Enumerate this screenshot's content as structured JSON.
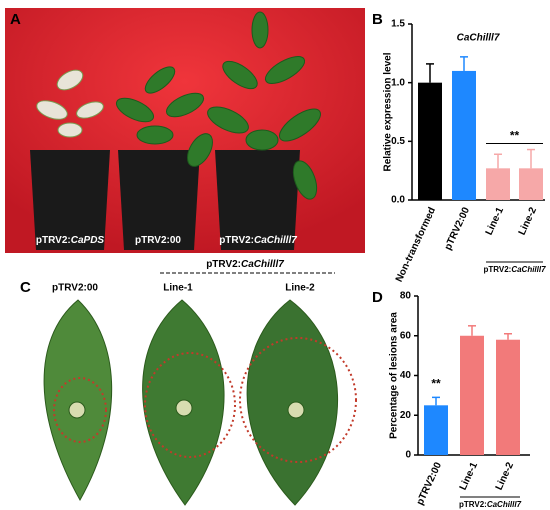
{
  "panels": {
    "A": {
      "label": "A",
      "captions": [
        {
          "prefix": "pTRV2:",
          "gene": "CaPDS"
        },
        {
          "prefix": "pTRV2:00"
        },
        {
          "prefix": "pTRV2:",
          "gene": "CaChilll7"
        }
      ]
    },
    "C": {
      "label": "C",
      "group_label": {
        "prefix": "pTRV2:",
        "gene": "CaChilll7"
      },
      "captions": [
        "pTRV2:00",
        "Line-1",
        "Line-2"
      ]
    }
  },
  "chart_data": [
    {
      "type": "bar",
      "panel": "B",
      "title": "CaChilll7",
      "y_label": "Relative expression level",
      "categories": [
        "Non-transformed",
        "pTRV2:00",
        "Line-1",
        "Line-2"
      ],
      "values": [
        1.0,
        1.1,
        0.27,
        0.27
      ],
      "errors": [
        0.16,
        0.12,
        0.12,
        0.16
      ],
      "colors": [
        "#000000",
        "#1e88ff",
        "#f6a8a8",
        "#f6a8a8"
      ],
      "group_label": {
        "prefix": "pTRV2:",
        "gene": "CaChilll7"
      },
      "annotations": [
        "**"
      ],
      "ylim": [
        0,
        1.5
      ],
      "yticks": [
        {
          "value": 0,
          "label": "0.0"
        },
        0.5,
        {
          "value": 1,
          "label": "1.0"
        },
        1.5
      ]
    },
    {
      "type": "bar",
      "panel": "D",
      "y_label": "Percentage of lesions area",
      "categories": [
        "pTRV2:00",
        "Line-1",
        "Line-2"
      ],
      "values": [
        25,
        60,
        58
      ],
      "errors": [
        4,
        5,
        3
      ],
      "colors": [
        "#1e88ff",
        "#f27a7a",
        "#f27a7a"
      ],
      "group_label": {
        "prefix": "pTRV2:",
        "gene": "CaChilll7"
      },
      "annotations": [
        "**"
      ],
      "ylim": [
        0,
        80
      ],
      "yticks": [
        0,
        20,
        40,
        60,
        80
      ]
    }
  ]
}
